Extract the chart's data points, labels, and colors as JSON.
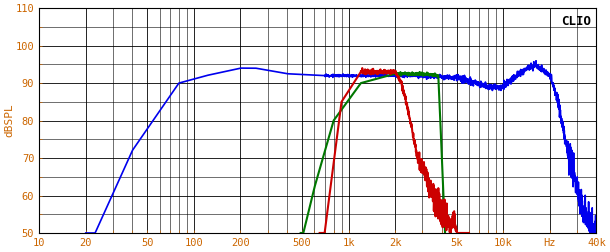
{
  "title": "CLIO",
  "ylabel": "dBSPL",
  "xmin": 10,
  "xmax": 40000,
  "ymin": 50,
  "ymax": 110,
  "yticks": [
    50,
    60,
    70,
    80,
    90,
    100,
    110
  ],
  "xtick_labels": [
    "10",
    "20",
    "50",
    "100",
    "200",
    "500",
    "1k",
    "2k",
    "5k",
    "10k",
    "Hz",
    "40k"
  ],
  "xtick_values": [
    10,
    20,
    50,
    100,
    200,
    500,
    1000,
    2000,
    5000,
    10000,
    20000,
    40000
  ],
  "bg_color": "#ffffff",
  "plot_bg_color": "#ffffff",
  "grid_color": "#000000",
  "blue_color": "#0000ee",
  "red_color": "#cc0000",
  "green_color": "#007700"
}
